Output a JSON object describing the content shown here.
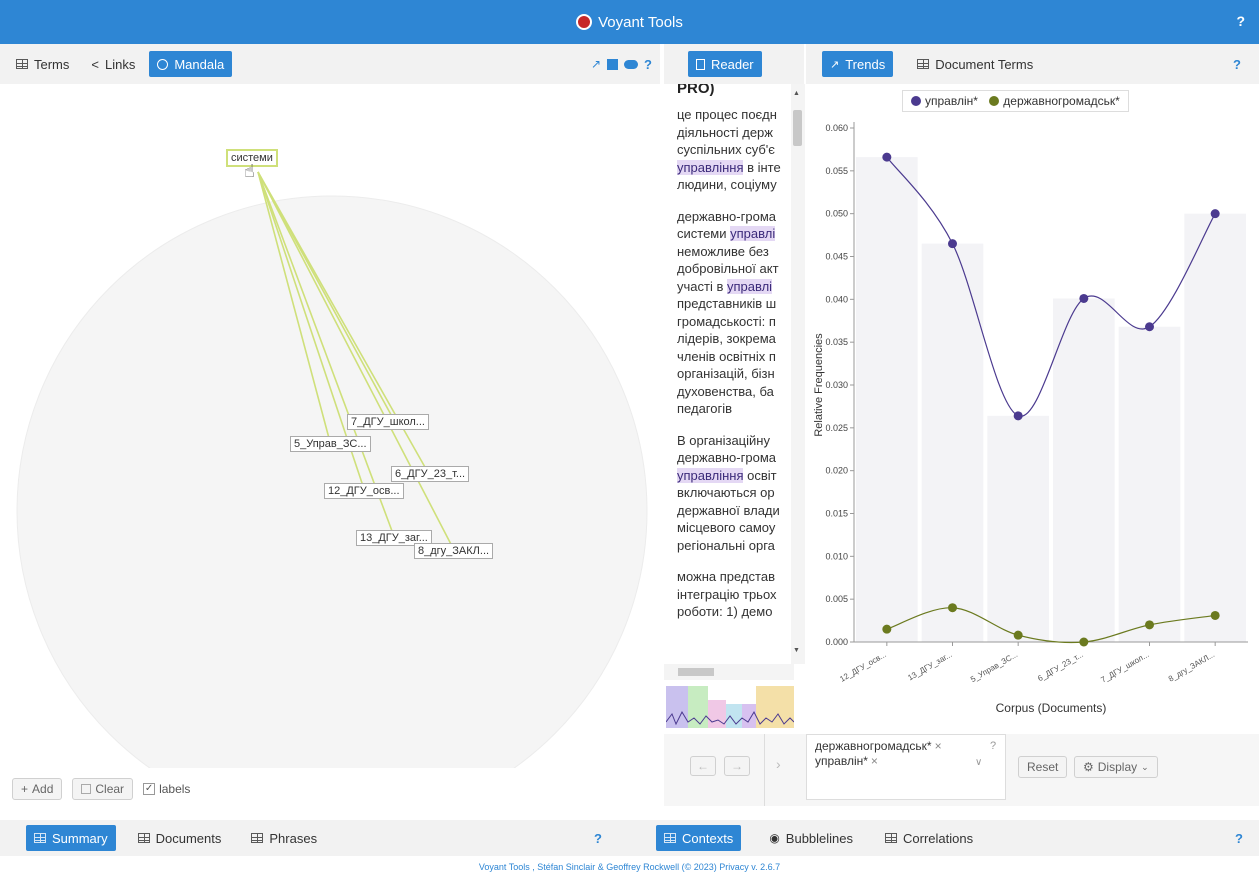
{
  "app": {
    "title": "Voyant Tools",
    "help": "?"
  },
  "left_panel": {
    "tabs": [
      {
        "label": "Terms",
        "active": false
      },
      {
        "label": "Links",
        "active": false
      },
      {
        "label": "Mandala",
        "active": true
      }
    ],
    "tool_icons": [
      "export-icon",
      "windows-icon",
      "toggle-icon"
    ],
    "help": "?",
    "mandala": {
      "center_term": "системи",
      "documents": [
        "7_ДГУ_школ...",
        "5_Управ_ЗС...",
        "6_ДГУ_23_т...",
        "12_ДГУ_осв...",
        "13_ДГУ_заг...",
        "8_дгу_ЗАКЛ..."
      ]
    },
    "footer": {
      "add": "Add",
      "clear": "Clear",
      "labels": "labels",
      "labels_checked": true
    }
  },
  "reader": {
    "tab_label": "Reader",
    "top_fragment": "PRO)",
    "paragraphs": [
      [
        {
          "text": "це процес поєдн",
          "hl": false
        },
        {
          "text": "діяльності держ",
          "hl": false
        },
        {
          "text": "суспільних суб'є",
          "hl": false
        },
        {
          "pre": "",
          "term": "управління",
          "post": " в інте"
        },
        {
          "text": "людини, соціуму",
          "hl": false
        }
      ],
      [
        {
          "text": "державно-грома",
          "hl": false
        },
        {
          "pre": "системи ",
          "term": "управлі",
          "post": ""
        },
        {
          "text": "неможливе без",
          "hl": false
        },
        {
          "text": "добровільної акт",
          "hl": false
        },
        {
          "pre": "участі в ",
          "term": "управлі",
          "post": ""
        },
        {
          "text": "представників ш",
          "hl": false
        },
        {
          "text": "громадськості: п",
          "hl": false
        },
        {
          "text": "лідерів, зокрема",
          "hl": false
        },
        {
          "text": "членів освітніх п",
          "hl": false
        },
        {
          "text": "організацій, бізн",
          "hl": false
        },
        {
          "text": "духовенства, ба",
          "hl": false
        },
        {
          "text": "педагогів",
          "hl": false
        }
      ],
      [
        {
          "text": "В організаційну",
          "hl": false
        },
        {
          "text": "державно-грома",
          "hl": false
        },
        {
          "pre": "",
          "term": "управління",
          "post": " освіт"
        },
        {
          "text": "включаються ор",
          "hl": false
        },
        {
          "text": "державної влади",
          "hl": false
        },
        {
          "text": "місцевого самоу",
          "hl": false
        },
        {
          "text": "регіональні орга",
          "hl": false
        }
      ],
      [
        {
          "text": "можна представ",
          "hl": false
        },
        {
          "text": "інтеграцію трьох",
          "hl": false
        },
        {
          "text": "роботи: 1) демо",
          "hl": false
        }
      ]
    ]
  },
  "trends": {
    "tabs": [
      {
        "label": "Trends",
        "active": true
      },
      {
        "label": "Document Terms",
        "active": false
      }
    ],
    "help": "?",
    "legend": [
      "управлін*",
      "державногромадськ*"
    ],
    "controls": {
      "query_tags": [
        "державногромадськ*",
        "управлін*"
      ],
      "query_help": "?",
      "reset": "Reset",
      "display": "Display"
    }
  },
  "chart_data": {
    "type": "line",
    "xlabel": "Corpus (Documents)",
    "ylabel": "Relative Frequencies",
    "categories": [
      "12_ДГУ_осв...",
      "13_ДГУ_заг...",
      "5_Управ_ЗС...",
      "6_ДГУ_23_т...",
      "7_ДГУ_школ...",
      "8_дгу_ЗАКЛ..."
    ],
    "ylim": [
      0,
      0.06
    ],
    "yticks": [
      "0.000",
      "0.005",
      "0.010",
      "0.015",
      "0.020",
      "0.025",
      "0.030",
      "0.035",
      "0.040",
      "0.045",
      "0.050",
      "0.055",
      "0.060"
    ],
    "series": [
      {
        "name": "управлін*",
        "color": "#4b3a8f",
        "values": [
          0.0566,
          0.0465,
          0.0264,
          0.0401,
          0.0368,
          0.05
        ]
      },
      {
        "name": "державногромадськ*",
        "color": "#6b7a1f",
        "values": [
          0.0015,
          0.004,
          0.0008,
          0.0,
          0.002,
          0.0031
        ]
      }
    ]
  },
  "bottom_left": {
    "tabs": [
      {
        "label": "Summary",
        "active": true
      },
      {
        "label": "Documents",
        "active": false
      },
      {
        "label": "Phrases",
        "active": false
      }
    ],
    "help": "?"
  },
  "bottom_right": {
    "tabs": [
      {
        "label": "Contexts",
        "active": true
      },
      {
        "label": "Bubblelines",
        "active": false
      },
      {
        "label": "Correlations",
        "active": false
      }
    ],
    "help": "?"
  },
  "footer": {
    "credit": "Voyant Tools , Stéfan Sinclair & Geoffrey Rockwell (© 2023) Privacy v. 2.6.7"
  }
}
